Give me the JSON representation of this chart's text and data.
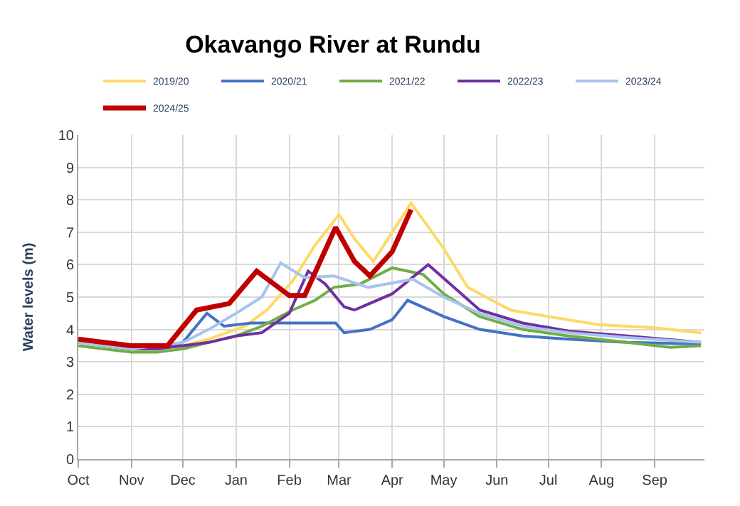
{
  "chart_data": {
    "type": "line",
    "title": "Okavango River at Rundu",
    "ylabel": "Water levels (m)",
    "xlim": [
      "2019-10-01",
      "2020-09-30"
    ],
    "xticks": [
      {
        "value": "2019-10-01",
        "label": "Oct"
      },
      {
        "value": "2019-11-01",
        "label": "Nov"
      },
      {
        "value": "2019-12-01",
        "label": "Dec"
      },
      {
        "value": "2020-01-01",
        "label": "Jan"
      },
      {
        "value": "2020-02-01",
        "label": "Feb"
      },
      {
        "value": "2020-03-01",
        "label": "Mar"
      },
      {
        "value": "2020-04-01",
        "label": "Apr"
      },
      {
        "value": "2020-05-01",
        "label": "May"
      },
      {
        "value": "2020-06-01",
        "label": "Jun"
      },
      {
        "value": "2020-07-01",
        "label": "Jul"
      },
      {
        "value": "2020-08-01",
        "label": "Aug"
      },
      {
        "value": "2020-09-01",
        "label": "Sep"
      }
    ],
    "ylim": [
      0,
      10
    ],
    "yticks": [
      0,
      1,
      2,
      3,
      4,
      5,
      6,
      7,
      8,
      9,
      10
    ],
    "grid": true,
    "legend": "top",
    "marker": "none",
    "line_style": "solid",
    "series": [
      {
        "name": "2019/20",
        "color": "#ffd966",
        "x": [
          "2019-11-16",
          "2019-12-01",
          "2019-12-16",
          "2020-01-06",
          "2020-01-19",
          "2020-02-03",
          "2020-02-16",
          "2020-03-01",
          "2020-03-10",
          "2020-03-21",
          "2020-04-01",
          "2020-04-12",
          "2020-05-01",
          "2020-05-15",
          "2020-06-09",
          "2020-07-01",
          "2020-07-30",
          "2020-09-01",
          "2020-09-28"
        ],
        "values": [
          3.4,
          3.5,
          3.7,
          4.1,
          4.6,
          5.5,
          6.6,
          7.55,
          6.8,
          6.1,
          7.0,
          7.9,
          6.5,
          5.3,
          4.6,
          4.4,
          4.15,
          4.05,
          3.9
        ]
      },
      {
        "name": "2020/21",
        "color": "#4472c4",
        "x": [
          "2019-10-01",
          "2019-10-16",
          "2019-11-01",
          "2019-11-16",
          "2019-12-01",
          "2019-12-15",
          "2019-12-25",
          "2020-01-10",
          "2020-02-01",
          "2020-02-16",
          "2020-02-28",
          "2020-03-04",
          "2020-03-19",
          "2020-04-01",
          "2020-04-10",
          "2020-05-01",
          "2020-05-22",
          "2020-06-16",
          "2020-07-13",
          "2020-08-16",
          "2020-09-28"
        ],
        "values": [
          3.6,
          3.5,
          3.4,
          3.4,
          3.6,
          4.5,
          4.1,
          4.2,
          4.2,
          4.2,
          4.2,
          3.9,
          4.0,
          4.3,
          4.9,
          4.4,
          4.0,
          3.8,
          3.7,
          3.6,
          3.55
        ]
      },
      {
        "name": "2021/22",
        "color": "#70ad47",
        "x": [
          "2019-10-01",
          "2019-10-16",
          "2019-11-01",
          "2019-11-16",
          "2019-12-01",
          "2019-12-16",
          "2020-01-01",
          "2020-01-16",
          "2020-02-03",
          "2020-02-16",
          "2020-02-27",
          "2020-03-13",
          "2020-04-01",
          "2020-04-19",
          "2020-05-01",
          "2020-05-22",
          "2020-06-16",
          "2020-07-13",
          "2020-08-16",
          "2020-09-10",
          "2020-09-28"
        ],
        "values": [
          3.5,
          3.4,
          3.3,
          3.3,
          3.4,
          3.6,
          3.8,
          4.1,
          4.6,
          4.9,
          5.3,
          5.4,
          5.9,
          5.7,
          5.1,
          4.4,
          4.0,
          3.8,
          3.6,
          3.45,
          3.5
        ]
      },
      {
        "name": "2022/23",
        "color": "#7030a0",
        "x": [
          "2019-10-01",
          "2019-10-16",
          "2019-11-01",
          "2019-11-16",
          "2019-12-01",
          "2019-12-16",
          "2020-01-01",
          "2020-01-16",
          "2020-02-01",
          "2020-02-12",
          "2020-02-22",
          "2020-03-04",
          "2020-03-10",
          "2020-04-01",
          "2020-04-22",
          "2020-05-07",
          "2020-05-22",
          "2020-06-16",
          "2020-07-13",
          "2020-08-16",
          "2020-09-28"
        ],
        "values": [
          3.7,
          3.5,
          3.4,
          3.4,
          3.5,
          3.6,
          3.8,
          3.9,
          4.5,
          5.8,
          5.4,
          4.7,
          4.6,
          5.1,
          6.0,
          5.3,
          4.6,
          4.2,
          3.95,
          3.8,
          3.6
        ]
      },
      {
        "name": "2023/24",
        "color": "#a9c4eb",
        "x": [
          "2019-10-01",
          "2019-10-16",
          "2019-11-01",
          "2019-12-01",
          "2019-12-16",
          "2020-01-01",
          "2020-01-16",
          "2020-01-27",
          "2020-02-10",
          "2020-02-27",
          "2020-03-18",
          "2020-04-13",
          "2020-05-01",
          "2020-05-22",
          "2020-06-16",
          "2020-07-13",
          "2020-08-16",
          "2020-09-28"
        ],
        "values": [
          3.6,
          3.5,
          3.4,
          3.6,
          4.0,
          4.5,
          5.0,
          6.05,
          5.6,
          5.65,
          5.3,
          5.55,
          5.0,
          4.5,
          4.1,
          3.9,
          3.75,
          3.6
        ]
      },
      {
        "name": "2024/25",
        "color": "#c00000",
        "x": [
          "2019-10-01",
          "2019-10-16",
          "2019-11-01",
          "2019-11-16",
          "2019-11-22",
          "2019-12-09",
          "2019-12-28",
          "2020-01-13",
          "2020-02-01",
          "2020-02-10",
          "2020-02-28",
          "2020-03-10",
          "2020-03-19",
          "2020-04-01",
          "2020-04-12"
        ],
        "values": [
          3.7,
          3.6,
          3.5,
          3.5,
          3.5,
          4.6,
          4.8,
          5.8,
          5.05,
          5.05,
          7.15,
          6.1,
          5.65,
          6.4,
          7.7
        ]
      }
    ]
  }
}
